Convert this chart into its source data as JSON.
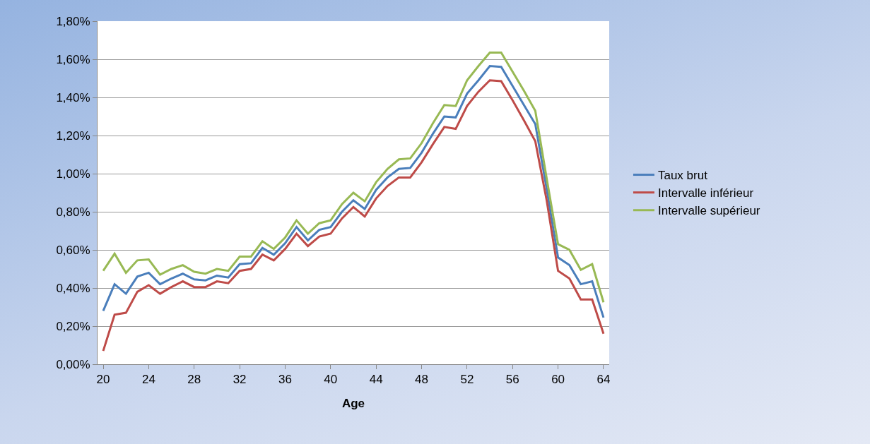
{
  "chart_data": {
    "type": "line",
    "xlabel": "Age",
    "x": [
      20,
      21,
      22,
      23,
      24,
      25,
      26,
      27,
      28,
      29,
      30,
      31,
      32,
      33,
      34,
      35,
      36,
      37,
      38,
      39,
      40,
      41,
      42,
      43,
      44,
      45,
      46,
      47,
      48,
      49,
      50,
      51,
      52,
      53,
      54,
      55,
      56,
      57,
      58,
      59,
      60,
      61,
      62,
      63,
      64
    ],
    "xlim": [
      19.5,
      64.5
    ],
    "xticks": [
      20,
      24,
      28,
      32,
      36,
      40,
      44,
      48,
      52,
      56,
      60,
      64
    ],
    "ylim": [
      0,
      1.8
    ],
    "yticks": [
      {
        "value": 0,
        "label": "0,00%"
      },
      {
        "value": 0.2,
        "label": "0,20%"
      },
      {
        "value": 0.4,
        "label": "0,40%"
      },
      {
        "value": 0.6,
        "label": "0,60%"
      },
      {
        "value": 0.8,
        "label": "0,80%"
      },
      {
        "value": 1.0,
        "label": "1,00%"
      },
      {
        "value": 1.2,
        "label": "1,20%"
      },
      {
        "value": 1.4,
        "label": "1,40%"
      },
      {
        "value": 1.6,
        "label": "1,60%"
      },
      {
        "value": 1.8,
        "label": "1,80%"
      }
    ],
    "grid": "y",
    "legend": "right",
    "marker": "none",
    "line_style": "solid",
    "series": [
      {
        "name": "Taux brut",
        "color": "#4a7ebb",
        "values": [
          0.28,
          0.42,
          0.37,
          0.46,
          0.48,
          0.42,
          0.45,
          0.475,
          0.445,
          0.44,
          0.465,
          0.455,
          0.525,
          0.53,
          0.61,
          0.575,
          0.635,
          0.72,
          0.65,
          0.705,
          0.72,
          0.8,
          0.86,
          0.815,
          0.915,
          0.98,
          1.025,
          1.03,
          1.11,
          1.21,
          1.3,
          1.295,
          1.42,
          1.49,
          1.565,
          1.56,
          1.46,
          1.36,
          1.26,
          0.92,
          0.56,
          0.52,
          0.42,
          0.435,
          0.245
        ]
      },
      {
        "name": "Intervalle inférieur",
        "color": "#be4b48",
        "values": [
          0.07,
          0.26,
          0.27,
          0.38,
          0.415,
          0.37,
          0.405,
          0.435,
          0.405,
          0.405,
          0.435,
          0.425,
          0.49,
          0.5,
          0.575,
          0.545,
          0.605,
          0.685,
          0.62,
          0.67,
          0.685,
          0.765,
          0.825,
          0.775,
          0.87,
          0.935,
          0.98,
          0.98,
          1.06,
          1.155,
          1.245,
          1.235,
          1.355,
          1.43,
          1.49,
          1.485,
          1.385,
          1.28,
          1.17,
          0.86,
          0.49,
          0.45,
          0.34,
          0.34,
          0.16
        ]
      },
      {
        "name": "Intervalle supérieur",
        "color": "#98b954",
        "values": [
          0.49,
          0.58,
          0.48,
          0.545,
          0.55,
          0.47,
          0.5,
          0.52,
          0.485,
          0.475,
          0.5,
          0.49,
          0.565,
          0.565,
          0.645,
          0.605,
          0.665,
          0.755,
          0.685,
          0.74,
          0.755,
          0.84,
          0.9,
          0.855,
          0.955,
          1.025,
          1.075,
          1.08,
          1.16,
          1.265,
          1.36,
          1.355,
          1.49,
          1.565,
          1.635,
          1.635,
          1.535,
          1.435,
          1.33,
          0.975,
          0.63,
          0.6,
          0.495,
          0.525,
          0.325
        ]
      }
    ]
  }
}
